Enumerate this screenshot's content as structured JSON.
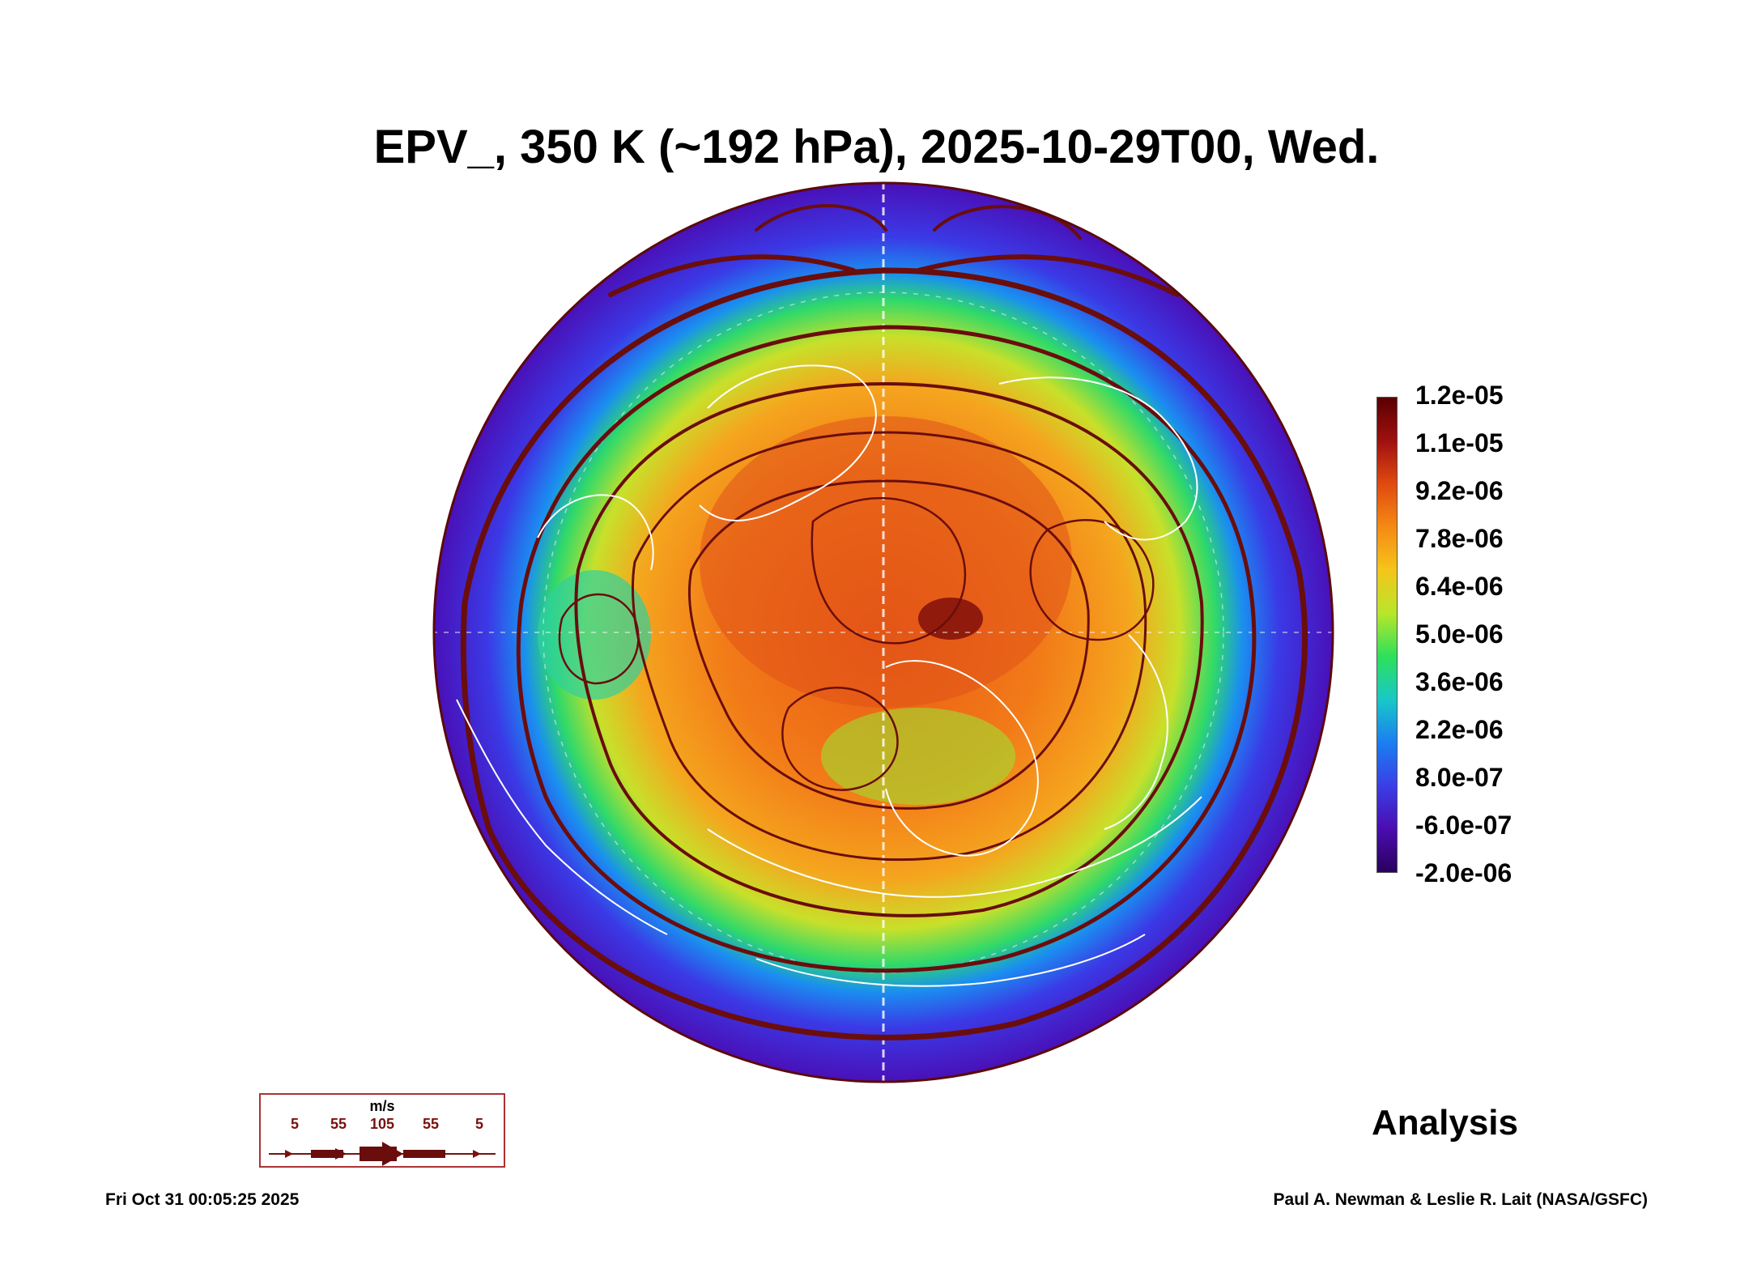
{
  "title": "EPV_, 350 K (~192 hPa), 2025-10-29T00, Wed.",
  "colorbar": {
    "labels": [
      "1.2e-05",
      "1.1e-05",
      "9.2e-06",
      "7.8e-06",
      "6.4e-06",
      "5.0e-06",
      "3.6e-06",
      "2.2e-06",
      "8.0e-07",
      "-6.0e-07",
      "-2.0e-06"
    ],
    "colors": [
      "#2a005e",
      "#4b0db0",
      "#3a3ee8",
      "#1a7ff0",
      "#18c8c8",
      "#2ee05a",
      "#b8e62a",
      "#f5c51a",
      "#f58a14",
      "#e04a10",
      "#a01010",
      "#5a0000"
    ]
  },
  "map": {
    "projection": "north-polar-stereographic",
    "streamline_color": "#6a0d0d",
    "coastline_color": "#ffffff"
  },
  "analysis_label": "Analysis",
  "wind_scale": {
    "unit": "m/s",
    "values": [
      "5",
      "55",
      "105",
      "55",
      "5"
    ]
  },
  "footer": {
    "timestamp": "Fri Oct 31 00:05:25 2025",
    "credit": "Paul A. Newman & Leslie R. Lait (NASA/GSFC)"
  }
}
